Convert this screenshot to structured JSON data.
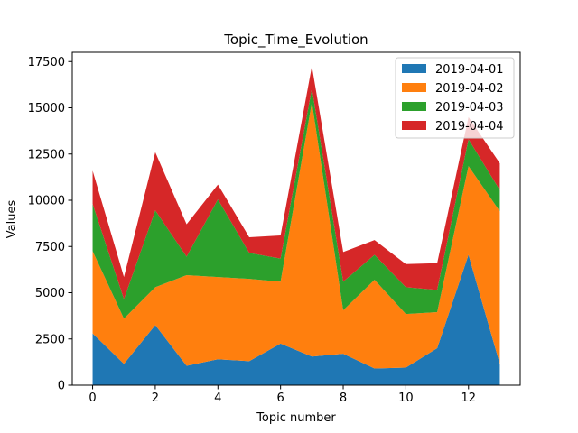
{
  "chart_data": {
    "type": "area",
    "stacked": true,
    "title": "Topic_Time_Evolution",
    "xlabel": "Topic number",
    "ylabel": "Values",
    "x": [
      0,
      1,
      2,
      3,
      4,
      5,
      6,
      7,
      8,
      9,
      10,
      11,
      12,
      13
    ],
    "xlim": [
      -0.65,
      13.65
    ],
    "ylim": [
      0,
      18000
    ],
    "xticks": [
      0,
      2,
      4,
      6,
      8,
      10,
      12
    ],
    "yticks": [
      0,
      2500,
      5000,
      7500,
      10000,
      12500,
      15000,
      17500
    ],
    "grid": false,
    "legend_position": "top-right",
    "series": [
      {
        "name": "2019-04-01",
        "color": "#1f77b4",
        "values": [
          2800,
          1150,
          3250,
          1050,
          1400,
          1300,
          2250,
          1550,
          1700,
          900,
          950,
          2000,
          7050,
          1150
        ]
      },
      {
        "name": "2019-04-02",
        "color": "#ff7f0e",
        "values": [
          4450,
          2450,
          2050,
          4900,
          4450,
          4450,
          3350,
          13750,
          2350,
          4800,
          2900,
          1950,
          4800,
          8250
        ]
      },
      {
        "name": "2019-04-03",
        "color": "#2ca02c",
        "values": [
          2550,
          1050,
          4150,
          1000,
          4200,
          1400,
          1250,
          750,
          1550,
          1350,
          1450,
          1200,
          1450,
          1150
        ]
      },
      {
        "name": "2019-04-04",
        "color": "#d62728",
        "values": [
          1800,
          1200,
          3150,
          1750,
          800,
          850,
          1250,
          1200,
          1600,
          800,
          1250,
          1450,
          1200,
          1450
        ]
      }
    ]
  }
}
